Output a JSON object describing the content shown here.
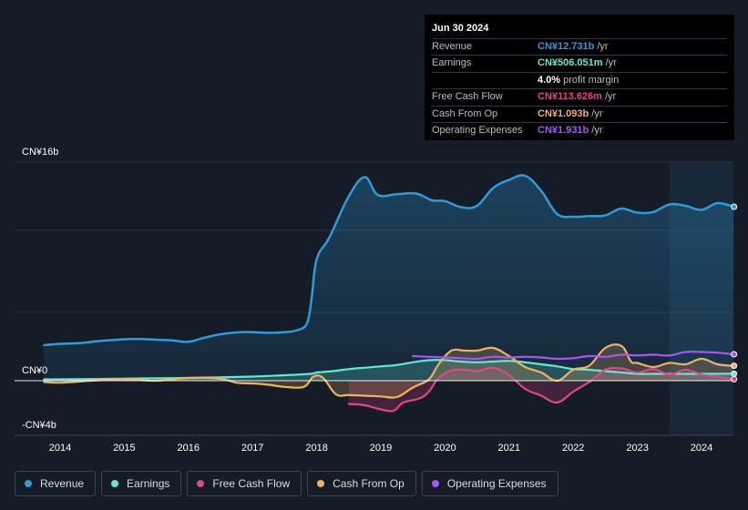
{
  "tooltip": {
    "date": "Jun 30 2024",
    "rows": [
      {
        "label": "Revenue",
        "value": "CN¥12.731b",
        "unit": "/yr",
        "color": "#2d9cdb"
      },
      {
        "label": "Earnings",
        "value": "CN¥506.051m",
        "unit": "/yr",
        "color": "#5eead4"
      },
      {
        "label": "",
        "value": "4.0%",
        "unit": "profit margin",
        "color": "#ffffff"
      },
      {
        "label": "Free Cash Flow",
        "value": "CN¥113.626m",
        "unit": "/yr",
        "color": "#e0468a"
      },
      {
        "label": "Cash From Op",
        "value": "CN¥1.093b",
        "unit": "/yr",
        "color": "#f0b160"
      },
      {
        "label": "Operating Expenses",
        "value": "CN¥1.931b",
        "unit": "/yr",
        "color": "#a855f7"
      }
    ]
  },
  "legend": [
    {
      "label": "Revenue",
      "color": "#2d9cdb"
    },
    {
      "label": "Earnings",
      "color": "#5eead4"
    },
    {
      "label": "Free Cash Flow",
      "color": "#e0468a"
    },
    {
      "label": "Cash From Op",
      "color": "#f0b160"
    },
    {
      "label": "Operating Expenses",
      "color": "#a855f7"
    }
  ],
  "chart_data": {
    "type": "line",
    "title": "",
    "xlabel": "",
    "ylabel": "",
    "y_top_label": "CN¥16b",
    "y_zero_label": "CN¥0",
    "y_bottom_label": "-CN¥4b",
    "ylim": [
      -4,
      16
    ],
    "xlim": [
      2013.75,
      2024.5
    ],
    "x_ticks": [
      2014,
      2015,
      2016,
      2017,
      2018,
      2019,
      2020,
      2021,
      2022,
      2023,
      2024
    ],
    "x_tick_labels": [
      "2014",
      "2015",
      "2016",
      "2017",
      "2018",
      "2019",
      "2020",
      "2021",
      "2022",
      "2023",
      "2024"
    ],
    "highlight_from": 2023.5,
    "series": [
      {
        "name": "Revenue",
        "color": "#2d9cdb",
        "fill": true,
        "points": [
          [
            2013.75,
            2.6
          ],
          [
            2014.0,
            2.7
          ],
          [
            2014.3,
            2.75
          ],
          [
            2014.6,
            2.9
          ],
          [
            2014.9,
            3.0
          ],
          [
            2015.2,
            3.05
          ],
          [
            2015.5,
            3.0
          ],
          [
            2015.75,
            2.95
          ],
          [
            2016.0,
            2.85
          ],
          [
            2016.25,
            3.15
          ],
          [
            2016.5,
            3.4
          ],
          [
            2016.8,
            3.55
          ],
          [
            2017.0,
            3.55
          ],
          [
            2017.25,
            3.5
          ],
          [
            2017.5,
            3.55
          ],
          [
            2017.7,
            3.7
          ],
          [
            2017.85,
            4.2
          ],
          [
            2017.92,
            6.0
          ],
          [
            2018.0,
            8.9
          ],
          [
            2018.2,
            10.5
          ],
          [
            2018.5,
            13.5
          ],
          [
            2018.75,
            14.9
          ],
          [
            2018.95,
            13.6
          ],
          [
            2019.25,
            13.65
          ],
          [
            2019.55,
            13.7
          ],
          [
            2019.8,
            13.2
          ],
          [
            2020.0,
            13.15
          ],
          [
            2020.25,
            12.7
          ],
          [
            2020.5,
            12.8
          ],
          [
            2020.75,
            14.1
          ],
          [
            2021.0,
            14.7
          ],
          [
            2021.25,
            15.0
          ],
          [
            2021.5,
            13.9
          ],
          [
            2021.75,
            12.2
          ],
          [
            2022.0,
            12.0
          ],
          [
            2022.25,
            12.05
          ],
          [
            2022.5,
            12.1
          ],
          [
            2022.75,
            12.6
          ],
          [
            2023.0,
            12.3
          ],
          [
            2023.25,
            12.35
          ],
          [
            2023.5,
            12.9
          ],
          [
            2023.75,
            12.8
          ],
          [
            2024.0,
            12.5
          ],
          [
            2024.25,
            13.0
          ],
          [
            2024.5,
            12.73
          ]
        ]
      },
      {
        "name": "Earnings",
        "color": "#5eead4",
        "fill": true,
        "points": [
          [
            2013.75,
            0.1
          ],
          [
            2014.0,
            0.1
          ],
          [
            2014.5,
            0.12
          ],
          [
            2015.0,
            0.15
          ],
          [
            2015.5,
            0.18
          ],
          [
            2016.0,
            0.2
          ],
          [
            2016.5,
            0.25
          ],
          [
            2017.0,
            0.3
          ],
          [
            2017.5,
            0.4
          ],
          [
            2017.9,
            0.5
          ],
          [
            2018.0,
            0.6
          ],
          [
            2018.25,
            0.7
          ],
          [
            2018.5,
            0.85
          ],
          [
            2018.75,
            0.95
          ],
          [
            2019.0,
            1.05
          ],
          [
            2019.25,
            1.15
          ],
          [
            2019.5,
            1.35
          ],
          [
            2019.75,
            1.5
          ],
          [
            2020.0,
            1.5
          ],
          [
            2020.25,
            1.4
          ],
          [
            2020.5,
            1.35
          ],
          [
            2020.75,
            1.4
          ],
          [
            2021.0,
            1.45
          ],
          [
            2021.25,
            1.35
          ],
          [
            2021.5,
            1.2
          ],
          [
            2021.75,
            1.05
          ],
          [
            2022.0,
            0.85
          ],
          [
            2022.25,
            0.8
          ],
          [
            2022.5,
            0.7
          ],
          [
            2022.75,
            0.6
          ],
          [
            2023.0,
            0.5
          ],
          [
            2023.25,
            0.5
          ],
          [
            2023.5,
            0.5
          ],
          [
            2024.0,
            0.5
          ],
          [
            2024.5,
            0.51
          ]
        ]
      },
      {
        "name": "Free Cash Flow",
        "color": "#e0468a",
        "fill": true,
        "points": [
          [
            2018.5,
            -1.7
          ],
          [
            2018.75,
            -1.8
          ],
          [
            2019.0,
            -2.1
          ],
          [
            2019.2,
            -2.2
          ],
          [
            2019.35,
            -1.6
          ],
          [
            2019.6,
            -1.3
          ],
          [
            2019.75,
            -0.8
          ],
          [
            2019.9,
            0.2
          ],
          [
            2020.1,
            0.75
          ],
          [
            2020.3,
            0.8
          ],
          [
            2020.5,
            0.7
          ],
          [
            2020.75,
            0.95
          ],
          [
            2021.0,
            0.4
          ],
          [
            2021.25,
            -0.6
          ],
          [
            2021.5,
            -1.1
          ],
          [
            2021.75,
            -1.6
          ],
          [
            2022.0,
            -0.8
          ],
          [
            2022.25,
            -0.1
          ],
          [
            2022.5,
            0.8
          ],
          [
            2022.75,
            0.9
          ],
          [
            2023.0,
            0.6
          ],
          [
            2023.25,
            0.85
          ],
          [
            2023.5,
            0.45
          ],
          [
            2023.75,
            0.8
          ],
          [
            2024.0,
            0.45
          ],
          [
            2024.25,
            0.3
          ],
          [
            2024.5,
            0.11
          ]
        ]
      },
      {
        "name": "Cash From Op",
        "color": "#f0b160",
        "fill": true,
        "points": [
          [
            2013.75,
            -0.1
          ],
          [
            2014.0,
            -0.15
          ],
          [
            2014.5,
            0.0
          ],
          [
            2015.0,
            0.1
          ],
          [
            2015.5,
            0.0
          ],
          [
            2016.0,
            0.2
          ],
          [
            2016.5,
            0.15
          ],
          [
            2016.75,
            -0.15
          ],
          [
            2017.0,
            -0.2
          ],
          [
            2017.25,
            -0.3
          ],
          [
            2017.5,
            -0.45
          ],
          [
            2017.8,
            -0.45
          ],
          [
            2017.95,
            0.3
          ],
          [
            2018.1,
            0.2
          ],
          [
            2018.3,
            -1.0
          ],
          [
            2018.5,
            -1.05
          ],
          [
            2018.75,
            -1.1
          ],
          [
            2019.0,
            -1.15
          ],
          [
            2019.25,
            -1.2
          ],
          [
            2019.5,
            -0.5
          ],
          [
            2019.75,
            0.1
          ],
          [
            2019.9,
            1.2
          ],
          [
            2020.1,
            2.2
          ],
          [
            2020.3,
            2.2
          ],
          [
            2020.5,
            2.2
          ],
          [
            2020.75,
            2.4
          ],
          [
            2021.0,
            1.8
          ],
          [
            2021.25,
            1.0
          ],
          [
            2021.5,
            0.6
          ],
          [
            2021.75,
            0.0
          ],
          [
            2022.0,
            0.8
          ],
          [
            2022.25,
            1.1
          ],
          [
            2022.5,
            2.4
          ],
          [
            2022.75,
            2.55
          ],
          [
            2022.9,
            1.4
          ],
          [
            2023.0,
            1.3
          ],
          [
            2023.25,
            1.0
          ],
          [
            2023.5,
            1.3
          ],
          [
            2023.75,
            1.2
          ],
          [
            2024.0,
            1.6
          ],
          [
            2024.25,
            1.2
          ],
          [
            2024.5,
            1.09
          ]
        ]
      },
      {
        "name": "Operating Expenses",
        "color": "#a855f7",
        "fill": false,
        "points": [
          [
            2019.5,
            1.8
          ],
          [
            2019.75,
            1.75
          ],
          [
            2020.0,
            1.7
          ],
          [
            2020.25,
            1.65
          ],
          [
            2020.5,
            1.6
          ],
          [
            2020.75,
            1.75
          ],
          [
            2021.0,
            1.7
          ],
          [
            2021.25,
            1.75
          ],
          [
            2021.5,
            1.7
          ],
          [
            2021.75,
            1.6
          ],
          [
            2022.0,
            1.65
          ],
          [
            2022.25,
            1.8
          ],
          [
            2022.5,
            1.75
          ],
          [
            2022.75,
            1.9
          ],
          [
            2023.0,
            1.85
          ],
          [
            2023.25,
            1.9
          ],
          [
            2023.5,
            1.85
          ],
          [
            2023.75,
            2.1
          ],
          [
            2024.0,
            2.1
          ],
          [
            2024.25,
            2.05
          ],
          [
            2024.5,
            1.93
          ]
        ]
      }
    ]
  }
}
